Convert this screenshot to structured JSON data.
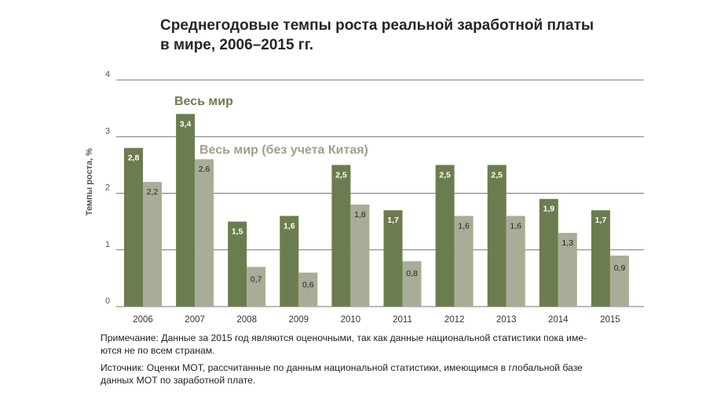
{
  "chart_data": {
    "type": "bar",
    "title_line1": "Среднегодовые темпы роста реальной заработной платы",
    "title_line2": "в мире, 2006–2015 гг.",
    "ylabel": "Темпы роста, %",
    "xlabel": "",
    "ylim": [
      0,
      4
    ],
    "yticks": [
      "0",
      "1",
      "2",
      "3",
      "4"
    ],
    "grid": true,
    "categories": [
      "2006",
      "2007",
      "2008",
      "2009",
      "2010",
      "2011",
      "2012",
      "2013",
      "2014",
      "2015"
    ],
    "series": [
      {
        "name": "Весь мир",
        "color": "#6b7d4e",
        "label_color": "#ffffff",
        "values": [
          2.8,
          3.4,
          1.5,
          1.6,
          2.5,
          1.7,
          2.5,
          2.5,
          1.9,
          1.7
        ],
        "labels": [
          "2,8",
          "3,4",
          "1,5",
          "1,6",
          "2,5",
          "1,7",
          "2,5",
          "2,5",
          "1,9",
          "1,7"
        ]
      },
      {
        "name": "Весь мир (без учета Китая)",
        "color": "#a9ad97",
        "label_color": "#222222",
        "values": [
          2.2,
          2.6,
          0.7,
          0.6,
          1.8,
          0.8,
          1.6,
          1.6,
          1.3,
          0.9
        ],
        "labels": [
          "2,2",
          "2,6",
          "0,7",
          "0,6",
          "1,8",
          "0,8",
          "1,6",
          "1,6",
          "1,3",
          "0,9"
        ]
      }
    ],
    "legend_placement": "inline, top-left inside plot",
    "legend_colors": [
      "#6b7d4e",
      "#9ea18a"
    ]
  },
  "notes": {
    "note_line1": "Примечание: Данные за 2015 год являются оценочными, так как данные национальной статистики пока име-",
    "note_line2": "ются не по всем странам.",
    "source_line1": "Источник: Оценки МОТ, рассчитанные по данным национальной статистики, имеющимся в глобальной базе",
    "source_line2": "данных МОТ по заработной плате."
  },
  "colors": {
    "gridline": "#4a4a4a",
    "axis_text": "#555555"
  }
}
